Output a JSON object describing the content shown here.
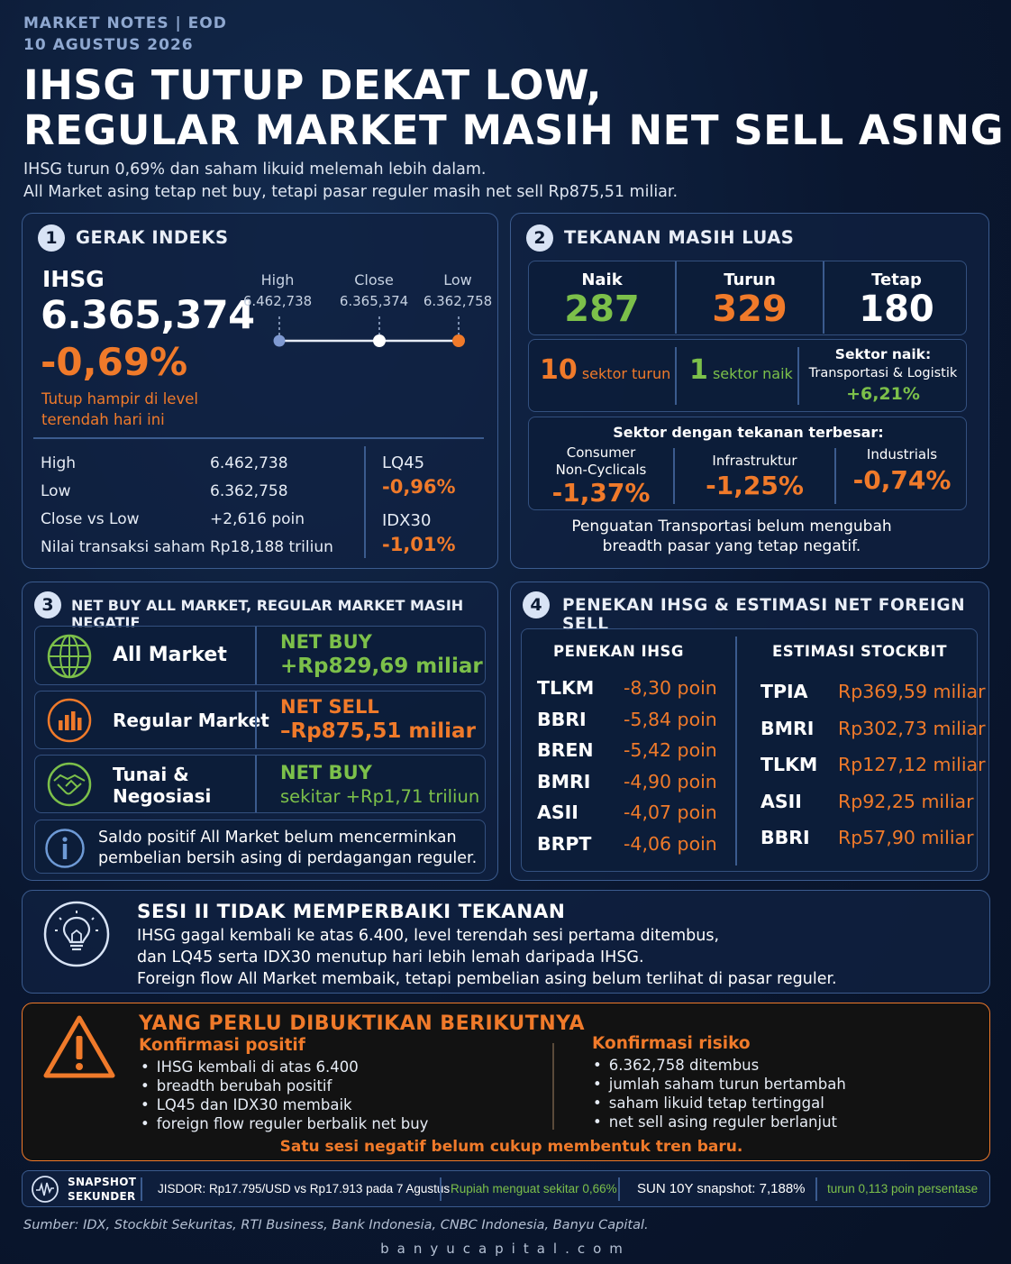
{
  "header": {
    "kicker": "MARKET NOTES | EOD",
    "date": "10 AGUSTUS 2026",
    "title_line1": "IHSG TUTUP DEKAT LOW,",
    "title_line2": "REGULAR MARKET MASIH NET SELL ASING",
    "lede_line1": "IHSG turun 0,69% dan saham likuid melemah lebih dalam.",
    "lede_line2": "All Market asing tetap net buy, tetapi pasar reguler masih net sell Rp875,51 miliar."
  },
  "panel1": {
    "number": "1",
    "title": "GERAK INDEKS",
    "index_name": "IHSG",
    "index_value": "6.365,374",
    "index_change": "-0,69%",
    "note_line1": "Tutup hampir di level",
    "note_line2": "terendah hari ini",
    "range": {
      "high_label": "High",
      "high_value": "6.462,738",
      "close_label": "Close",
      "close_value": "6.365,374",
      "low_label": "Low",
      "low_value": "6.362,758"
    },
    "stats": [
      {
        "label": "High",
        "value": "6.462,738"
      },
      {
        "label": "Low",
        "value": "6.362,758"
      },
      {
        "label": "Close vs Low",
        "value": "+2,616 poin"
      },
      {
        "label": "Nilai transaksi saham",
        "value": "Rp18,188 triliun"
      }
    ],
    "lq45_label": "LQ45",
    "lq45_value": "-0,96%",
    "idx30_label": "IDX30",
    "idx30_value": "-1,01%"
  },
  "panel2": {
    "number": "2",
    "title": "TEKANAN MASIH LUAS",
    "naik_label": "Naik",
    "naik_value": "287",
    "turun_label": "Turun",
    "turun_value": "329",
    "tetap_label": "Tetap",
    "tetap_value": "180",
    "sector_down_num": "10",
    "sector_down_text": "sektor turun",
    "sector_up_num": "1",
    "sector_up_text": "sektor naik",
    "sector_up_name_label": "Sektor naik:",
    "sector_up_name": "Transportasi & Logistik",
    "sector_up_value": "+6,21%",
    "pressure_title": "Sektor dengan tekanan terbesar:",
    "pressure": [
      {
        "line1": "Consumer",
        "line2": "Non-Cyclicals",
        "value": "-1,37%"
      },
      {
        "line1": "",
        "line2": "Infrastruktur",
        "value": "-1,25%"
      },
      {
        "line1": "",
        "line2": "Industrials",
        "value": "-0,74%"
      }
    ],
    "footnote_line1": "Penguatan Transportasi belum mengubah",
    "footnote_line2": "breadth pasar yang tetap negatif."
  },
  "panel3": {
    "number": "3",
    "title": "NET BUY ALL MARKET, REGULAR MARKET MASIH NEGATIF",
    "rows": [
      {
        "name_line1": "All Market",
        "name_line2": "",
        "status": "NET BUY",
        "value": "+Rp829,69 miliar"
      },
      {
        "name_line1": "Regular Market",
        "name_line2": "",
        "status": "NET SELL",
        "value": "–Rp875,51 miliar"
      },
      {
        "name_line1": "Tunai &",
        "name_line2": "Negosiasi",
        "status": "NET BUY",
        "value": "sekitar +Rp1,71 triliun"
      }
    ],
    "info_line1": "Saldo positif All Market belum mencerminkan",
    "info_line2": "pembelian bersih asing di perdagangan reguler."
  },
  "panel4": {
    "number": "4",
    "title": "PENEKAN IHSG & ESTIMASI NET FOREIGN SELL",
    "left_header": "PENEKAN IHSG",
    "right_header": "ESTIMASI STOCKBIT",
    "penekan": [
      {
        "ticker": "TLKM",
        "value": "-8,30 poin"
      },
      {
        "ticker": "BBRI",
        "value": "-5,84 poin"
      },
      {
        "ticker": "BREN",
        "value": "-5,42 poin"
      },
      {
        "ticker": "BMRI",
        "value": "-4,90 poin"
      },
      {
        "ticker": "ASII",
        "value": "-4,07 poin"
      },
      {
        "ticker": "BRPT",
        "value": "-4,06 poin"
      }
    ],
    "foreign": [
      {
        "ticker": "TPIA",
        "value": "Rp369,59 miliar"
      },
      {
        "ticker": "BMRI",
        "value": "Rp302,73 miliar"
      },
      {
        "ticker": "TLKM",
        "value": "Rp127,12 miliar"
      },
      {
        "ticker": "ASII",
        "value": "Rp92,25 miliar"
      },
      {
        "ticker": "BBRI",
        "value": "Rp57,90 miliar"
      }
    ]
  },
  "sesi": {
    "title": "SESI II TIDAK MEMPERBAIKI TEKANAN",
    "line1": "IHSG gagal kembali ke atas 6.400, level terendah sesi pertama ditembus,",
    "line2": "dan LQ45 serta IDX30 menutup hari lebih lemah daripada IHSG.",
    "line3": "Foreign flow All Market membaik, tetapi pembelian asing belum terlihat di pasar reguler."
  },
  "next": {
    "title": "YANG PERLU DIBUKTIKAN BERIKUTNYA",
    "positive_title": "Konfirmasi positif",
    "positive": [
      "IHSG kembali di atas 6.400",
      "breadth berubah positif",
      "LQ45 dan IDX30 membaik",
      "foreign flow reguler berbalik net buy"
    ],
    "risk_title": "Konfirmasi risiko",
    "risk": [
      "6.362,758 ditembus",
      "jumlah saham turun bertambah",
      "saham likuid tetap tertinggal",
      "net sell asing reguler berlanjut"
    ],
    "footer": "Satu sesi negatif belum cukup membentuk tren baru."
  },
  "snapshot": {
    "label_line1": "SNAPSHOT",
    "label_line2": "SEKUNDER",
    "jisdor": "JISDOR: Rp17.795/USD vs Rp17.913 pada 7 Agustus",
    "rupiah": "Rupiah menguat sekitar 0,66%",
    "sun": "SUN 10Y snapshot: 7,188%",
    "sun_change": "turun 0,113 poin persentase"
  },
  "source": "Sumber: IDX, Stockbit Sekuritas, RTI Business, Bank Indonesia, CNBC Indonesia, Banyu Capital.",
  "website": "banyucapital.com",
  "colors": {
    "accent_orange": "#f07a2a",
    "accent_green": "#7cc04a",
    "panel_border": "#3b5b8e",
    "background": "#0a1830"
  }
}
